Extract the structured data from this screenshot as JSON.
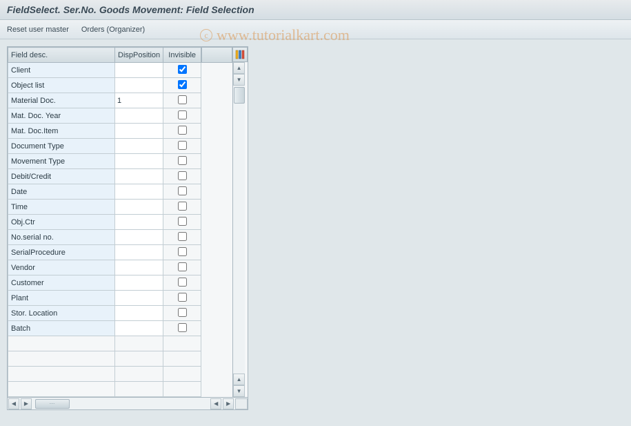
{
  "title": "FieldSelect. Ser.No. Goods Movement: Field Selection",
  "toolbar": {
    "reset_label": "Reset user master",
    "orders_label": "Orders (Organizer)"
  },
  "table": {
    "columns": {
      "fielddesc": "Field desc.",
      "dispposition": "DispPosition",
      "invisible": "Invisible"
    },
    "col_widths": {
      "fielddesc": 155,
      "dispposition": 70,
      "invisible": 55
    },
    "rows": [
      {
        "label": "Client",
        "disp": "",
        "invisible": true
      },
      {
        "label": "Object list",
        "disp": "",
        "invisible": true
      },
      {
        "label": "Material Doc.",
        "disp": "1",
        "invisible": false
      },
      {
        "label": "Mat. Doc. Year",
        "disp": "",
        "invisible": false
      },
      {
        "label": "Mat. Doc.Item",
        "disp": "",
        "invisible": false
      },
      {
        "label": "Document Type",
        "disp": "",
        "invisible": false
      },
      {
        "label": "Movement Type",
        "disp": "",
        "invisible": false
      },
      {
        "label": "Debit/Credit",
        "disp": "",
        "invisible": false
      },
      {
        "label": "Date",
        "disp": "",
        "invisible": false
      },
      {
        "label": "Time",
        "disp": "",
        "invisible": false
      },
      {
        "label": "Obj.Ctr",
        "disp": "",
        "invisible": false
      },
      {
        "label": "No.serial no.",
        "disp": "",
        "invisible": false
      },
      {
        "label": "SerialProcedure",
        "disp": "",
        "invisible": false
      },
      {
        "label": "Vendor",
        "disp": "",
        "invisible": false
      },
      {
        "label": "Customer",
        "disp": "",
        "invisible": false
      },
      {
        "label": "Plant",
        "disp": "",
        "invisible": false
      },
      {
        "label": "Stor. Location",
        "disp": "",
        "invisible": false
      },
      {
        "label": "Batch",
        "disp": "",
        "invisible": false
      }
    ],
    "empty_rows": 4
  },
  "colors": {
    "page_bg": "#e0e7ea",
    "header_grad_top": "#e8ebed",
    "header_grad_bottom": "#d4dde3",
    "toolbar_grad_top": "#eef2f4",
    "toolbar_grad_bottom": "#dde5ea",
    "th_grad_top": "#e6ecef",
    "th_grad_bottom": "#d1dbe0",
    "row_label_bg": "#e8f2fa",
    "input_bg": "#ffffff",
    "cell_bg": "#f5f7f8",
    "border": "#a9b7c0",
    "cell_border": "#c2cdd3",
    "text": "#354752",
    "watermark": "rgba(220,140,60,0.5)"
  },
  "watermark": {
    "symbol": "c",
    "text": "www.tutorialkart.com"
  },
  "config_icon_colors": [
    "#f2b01e",
    "#3a7cc4",
    "#d94e3a"
  ]
}
